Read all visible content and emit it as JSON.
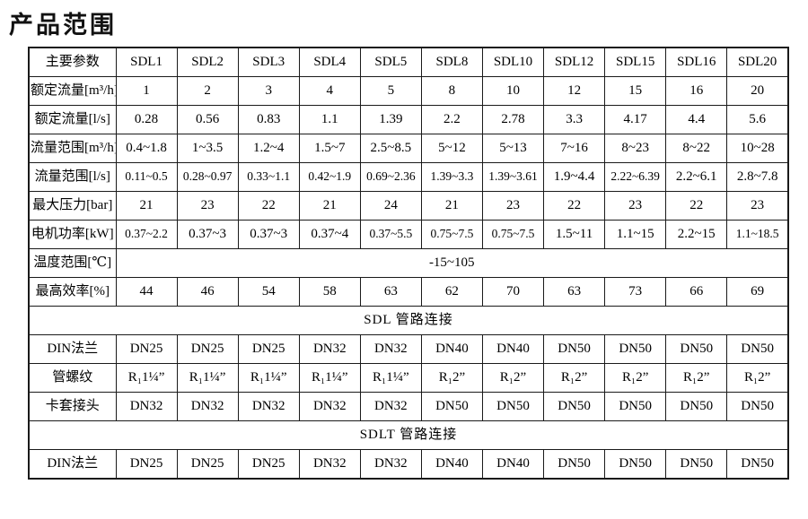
{
  "page_title": "产品范围",
  "accent_colors": {
    "border": "#1a1a1a",
    "background": "#ffffff",
    "text": "#000000"
  },
  "chart_data": {
    "type": "table",
    "title": "产品范围",
    "header": {
      "label": "主要参数",
      "models": [
        "SDL1",
        "SDL2",
        "SDL3",
        "SDL4",
        "SDL5",
        "SDL8",
        "SDL10",
        "SDL12",
        "SDL15",
        "SDL16",
        "SDL20"
      ]
    },
    "rows": [
      {
        "type": "data",
        "label": "额定流量[m³/h]",
        "values": [
          "1",
          "2",
          "3",
          "4",
          "5",
          "8",
          "10",
          "12",
          "15",
          "16",
          "20"
        ]
      },
      {
        "type": "data",
        "label": "额定流量[l/s]",
        "values": [
          "0.28",
          "0.56",
          "0.83",
          "1.1",
          "1.39",
          "2.2",
          "2.78",
          "3.3",
          "4.17",
          "4.4",
          "5.6"
        ]
      },
      {
        "type": "data",
        "label": "流量范围[m³/h]",
        "values": [
          "0.4~1.8",
          "1~3.5",
          "1.2~4",
          "1.5~7",
          "2.5~8.5",
          "5~12",
          "5~13",
          "7~16",
          "8~23",
          "8~22",
          "10~28"
        ]
      },
      {
        "type": "data",
        "label": "流量范围[l/s]",
        "values": [
          "0.11~0.5",
          "0.28~0.97",
          "0.33~1.1",
          "0.42~1.9",
          "0.69~2.36",
          "1.39~3.3",
          "1.39~3.61",
          "1.9~4.4",
          "2.22~6.39",
          "2.2~6.1",
          "2.8~7.8"
        ]
      },
      {
        "type": "data",
        "label": "最大压力[bar]",
        "values": [
          "21",
          "23",
          "22",
          "21",
          "24",
          "21",
          "23",
          "22",
          "23",
          "22",
          "23"
        ]
      },
      {
        "type": "data",
        "label": "电机功率[kW]",
        "values": [
          "0.37~2.2",
          "0.37~3",
          "0.37~3",
          "0.37~4",
          "0.37~5.5",
          "0.75~7.5",
          "0.75~7.5",
          "1.5~11",
          "1.1~15",
          "2.2~15",
          "1.1~18.5"
        ]
      },
      {
        "type": "merged",
        "label": "温度范围[℃]",
        "value": "-15~105"
      },
      {
        "type": "data",
        "label": "最高效率[%]",
        "values": [
          "44",
          "46",
          "54",
          "58",
          "63",
          "62",
          "70",
          "63",
          "73",
          "66",
          "69"
        ]
      },
      {
        "type": "section",
        "title": "SDL 管路连接"
      },
      {
        "type": "data",
        "label": "DIN法兰",
        "values": [
          "DN25",
          "DN25",
          "DN25",
          "DN32",
          "DN32",
          "DN40",
          "DN40",
          "DN50",
          "DN50",
          "DN50",
          "DN50"
        ]
      },
      {
        "type": "data",
        "label": "管螺纹",
        "values": [
          "R₁1¼”",
          "R₁1¼”",
          "R₁1¼”",
          "R₁1¼”",
          "R₁1¼”",
          "R₁2”",
          "R₁2”",
          "R₁2”",
          "R₁2”",
          "R₁2”",
          "R₁2”"
        ]
      },
      {
        "type": "data",
        "label": "卡套接头",
        "values": [
          "DN32",
          "DN32",
          "DN32",
          "DN32",
          "DN32",
          "DN50",
          "DN50",
          "DN50",
          "DN50",
          "DN50",
          "DN50"
        ]
      },
      {
        "type": "section",
        "title": "SDLT 管路连接"
      },
      {
        "type": "data",
        "label": "DIN法兰",
        "values": [
          "DN25",
          "DN25",
          "DN25",
          "DN32",
          "DN32",
          "DN40",
          "DN40",
          "DN50",
          "DN50",
          "DN50",
          "DN50"
        ]
      }
    ]
  }
}
